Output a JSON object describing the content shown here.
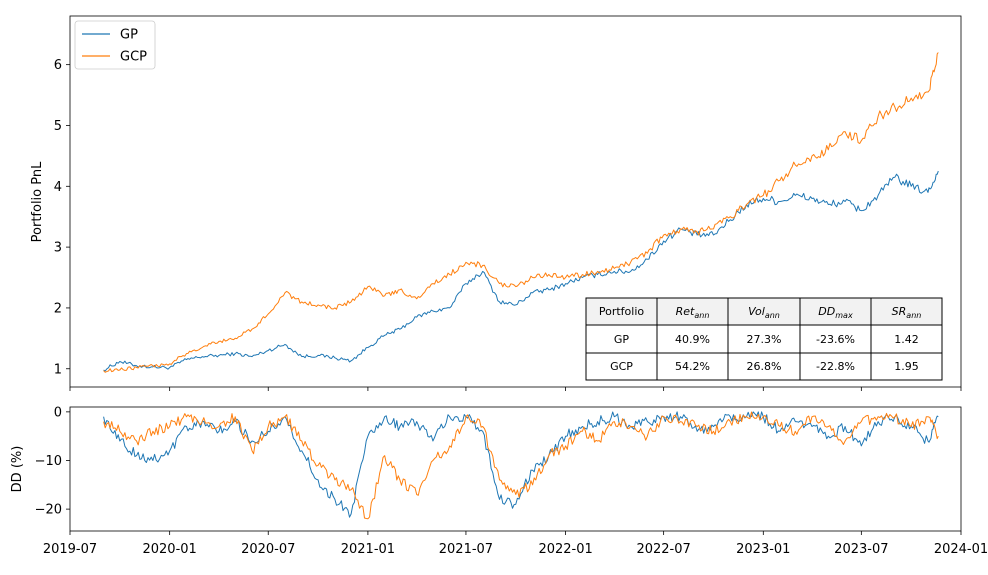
{
  "colors": {
    "gp": "#1f77b4",
    "gcp": "#ff7f0e",
    "header_bg": "#f2f2f2"
  },
  "legend": {
    "gp": "GP",
    "gcp": "GCP"
  },
  "table": {
    "headers": [
      "Portfolio",
      "Ret",
      "Vol",
      "DD",
      "SR"
    ],
    "header_subscripts": [
      "",
      "ann",
      "ann",
      "max",
      "ann"
    ],
    "rows": [
      [
        "GP",
        "40.9%",
        "27.3%",
        "-23.6%",
        "1.42"
      ],
      [
        "GCP",
        "54.2%",
        "26.8%",
        "-22.8%",
        "1.95"
      ]
    ]
  },
  "chart_data": [
    {
      "type": "line",
      "ylabel": "Portfolio PnL",
      "xlim": [
        "2019-07-01",
        "2024-01-01"
      ],
      "ylim": [
        0.7,
        6.8
      ],
      "yticks": [
        1,
        2,
        3,
        4,
        5,
        6
      ],
      "grid": false,
      "legend_position": "top-left",
      "series": [
        {
          "name": "GP",
          "x": [
            "2019-09-01",
            "2019-10-01",
            "2019-11-01",
            "2019-12-01",
            "2020-01-01",
            "2020-02-01",
            "2020-03-01",
            "2020-04-01",
            "2020-05-01",
            "2020-06-01",
            "2020-07-01",
            "2020-08-01",
            "2020-09-01",
            "2020-10-01",
            "2020-11-01",
            "2020-12-01",
            "2021-01-01",
            "2021-02-01",
            "2021-03-01",
            "2021-04-01",
            "2021-05-01",
            "2021-06-01",
            "2021-07-01",
            "2021-08-01",
            "2021-09-01",
            "2021-10-01",
            "2021-11-01",
            "2021-12-01",
            "2022-01-01",
            "2022-02-01",
            "2022-03-01",
            "2022-04-01",
            "2022-05-01",
            "2022-06-01",
            "2022-07-01",
            "2022-08-01",
            "2022-09-01",
            "2022-10-01",
            "2022-11-01",
            "2022-12-01",
            "2023-01-01",
            "2023-02-01",
            "2023-03-01",
            "2023-04-01",
            "2023-05-01",
            "2023-06-01",
            "2023-07-01",
            "2023-08-01",
            "2023-09-01",
            "2023-10-01",
            "2023-11-01",
            "2023-11-20"
          ],
          "values": [
            0.98,
            1.12,
            1.05,
            1.03,
            1.02,
            1.15,
            1.2,
            1.22,
            1.25,
            1.2,
            1.3,
            1.4,
            1.2,
            1.22,
            1.18,
            1.13,
            1.35,
            1.55,
            1.65,
            1.85,
            1.95,
            2.0,
            2.4,
            2.6,
            2.1,
            2.05,
            2.25,
            2.3,
            2.4,
            2.5,
            2.55,
            2.6,
            2.6,
            2.8,
            3.1,
            3.3,
            3.2,
            3.2,
            3.45,
            3.7,
            3.8,
            3.75,
            3.85,
            3.8,
            3.7,
            3.75,
            3.6,
            3.85,
            4.15,
            4.0,
            3.9,
            4.25
          ]
        },
        {
          "name": "GCP",
          "x": [
            "2019-09-01",
            "2019-10-01",
            "2019-11-01",
            "2019-12-01",
            "2020-01-01",
            "2020-02-01",
            "2020-03-01",
            "2020-04-01",
            "2020-05-01",
            "2020-06-01",
            "2020-07-01",
            "2020-08-01",
            "2020-09-01",
            "2020-10-01",
            "2020-11-01",
            "2020-12-01",
            "2021-01-01",
            "2021-02-01",
            "2021-03-01",
            "2021-04-01",
            "2021-05-01",
            "2021-06-01",
            "2021-07-01",
            "2021-08-01",
            "2021-09-01",
            "2021-10-01",
            "2021-11-01",
            "2021-12-01",
            "2022-01-01",
            "2022-02-01",
            "2022-03-01",
            "2022-04-01",
            "2022-05-01",
            "2022-06-01",
            "2022-07-01",
            "2022-08-01",
            "2022-09-01",
            "2022-10-01",
            "2022-11-01",
            "2022-12-01",
            "2023-01-01",
            "2023-02-01",
            "2023-03-01",
            "2023-04-01",
            "2023-05-01",
            "2023-06-01",
            "2023-07-01",
            "2023-08-01",
            "2023-09-01",
            "2023-10-01",
            "2023-11-01",
            "2023-11-20"
          ],
          "values": [
            0.97,
            0.98,
            1.02,
            1.05,
            1.08,
            1.25,
            1.35,
            1.45,
            1.5,
            1.65,
            1.9,
            2.25,
            2.1,
            2.05,
            2.0,
            2.1,
            2.35,
            2.2,
            2.3,
            2.15,
            2.4,
            2.55,
            2.75,
            2.7,
            2.4,
            2.35,
            2.5,
            2.55,
            2.5,
            2.55,
            2.6,
            2.65,
            2.75,
            2.9,
            3.2,
            3.3,
            3.25,
            3.3,
            3.5,
            3.7,
            3.85,
            4.1,
            4.35,
            4.5,
            4.6,
            4.9,
            4.75,
            5.15,
            5.3,
            5.45,
            5.55,
            6.2
          ]
        }
      ]
    },
    {
      "type": "line",
      "ylabel": "DD (%)",
      "xlim": [
        "2019-07-01",
        "2024-01-01"
      ],
      "ylim": [
        -24.5,
        1
      ],
      "yticks": [
        0,
        -10,
        -20
      ],
      "xticks": [
        "2019-07",
        "2020-01",
        "2020-07",
        "2021-01",
        "2021-07",
        "2022-01",
        "2022-07",
        "2023-01",
        "2023-07",
        "2024-01"
      ],
      "grid": false,
      "series": [
        {
          "name": "GP",
          "x": [
            "2019-09-01",
            "2019-10-01",
            "2019-11-01",
            "2019-12-01",
            "2020-01-01",
            "2020-02-01",
            "2020-03-01",
            "2020-04-01",
            "2020-05-01",
            "2020-06-01",
            "2020-07-01",
            "2020-08-01",
            "2020-09-01",
            "2020-10-01",
            "2020-11-01",
            "2020-12-01",
            "2021-01-01",
            "2021-02-01",
            "2021-03-01",
            "2021-04-01",
            "2021-05-01",
            "2021-06-01",
            "2021-07-01",
            "2021-08-01",
            "2021-09-01",
            "2021-10-01",
            "2021-11-01",
            "2021-12-01",
            "2022-01-01",
            "2022-02-01",
            "2022-03-01",
            "2022-04-01",
            "2022-05-01",
            "2022-06-01",
            "2022-07-01",
            "2022-08-01",
            "2022-09-01",
            "2022-10-01",
            "2022-11-01",
            "2022-12-01",
            "2023-01-01",
            "2023-02-01",
            "2023-03-01",
            "2023-04-01",
            "2023-05-01",
            "2023-06-01",
            "2023-07-01",
            "2023-08-01",
            "2023-09-01",
            "2023-10-01",
            "2023-11-01",
            "2023-11-20"
          ],
          "values": [
            -1,
            -6,
            -9,
            -10,
            -8,
            -3,
            -2,
            -4,
            -2,
            -6,
            -4,
            -1,
            -8,
            -14,
            -18,
            -21,
            -5,
            -1,
            -3,
            -2,
            -6,
            -1,
            -1,
            -4,
            -18,
            -19,
            -12,
            -9,
            -5,
            -3,
            -2,
            -1,
            -3,
            -2,
            -1,
            -1,
            -4,
            -3,
            -1,
            -1,
            -1,
            -4,
            -2,
            -3,
            -5,
            -3,
            -7,
            -2,
            -1,
            -3,
            -6,
            -1
          ]
        },
        {
          "name": "GCP",
          "x": [
            "2019-09-01",
            "2019-10-01",
            "2019-11-01",
            "2019-12-01",
            "2020-01-01",
            "2020-02-01",
            "2020-03-01",
            "2020-04-01",
            "2020-05-01",
            "2020-06-01",
            "2020-07-01",
            "2020-08-01",
            "2020-09-01",
            "2020-10-01",
            "2020-11-01",
            "2020-12-01",
            "2021-01-01",
            "2021-02-01",
            "2021-03-01",
            "2021-04-01",
            "2021-05-01",
            "2021-06-01",
            "2021-07-01",
            "2021-08-01",
            "2021-09-01",
            "2021-10-01",
            "2021-11-01",
            "2021-12-01",
            "2022-01-01",
            "2022-02-01",
            "2022-03-01",
            "2022-04-01",
            "2022-05-01",
            "2022-06-01",
            "2022-07-01",
            "2022-08-01",
            "2022-09-01",
            "2022-10-01",
            "2022-11-01",
            "2022-12-01",
            "2023-01-01",
            "2023-02-01",
            "2023-03-01",
            "2023-04-01",
            "2023-05-01",
            "2023-06-01",
            "2023-07-01",
            "2023-08-01",
            "2023-09-01",
            "2023-10-01",
            "2023-11-01",
            "2023-11-20"
          ],
          "values": [
            -2,
            -4,
            -6,
            -4,
            -3,
            -1,
            -2,
            -3,
            -1,
            -8,
            -3,
            -1,
            -6,
            -11,
            -14,
            -16,
            -22,
            -9,
            -14,
            -17,
            -10,
            -7,
            -1,
            -3,
            -14,
            -17,
            -15,
            -9,
            -7,
            -4,
            -6,
            -2,
            -3,
            -5,
            -1,
            -2,
            -3,
            -4,
            -2,
            -1,
            -1,
            -3,
            -4,
            -1,
            -3,
            -6,
            -2,
            -1,
            -1,
            -3,
            -1,
            -5
          ]
        }
      ]
    }
  ]
}
